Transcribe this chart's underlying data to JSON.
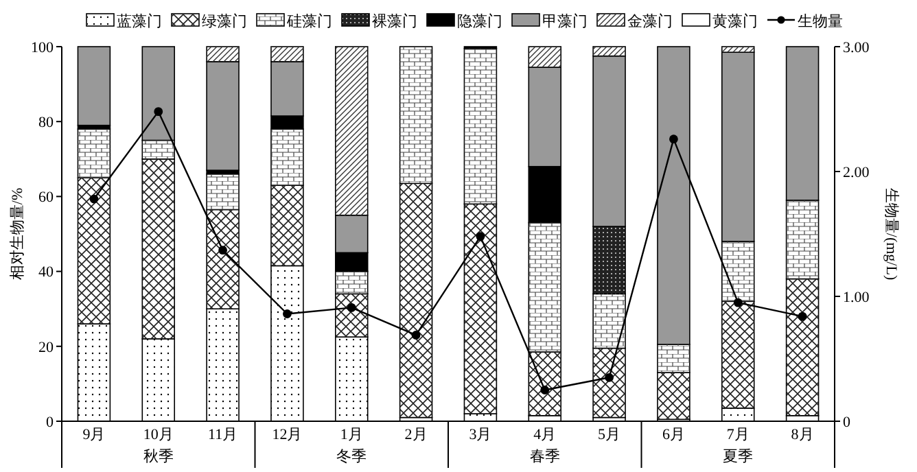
{
  "chart_data": {
    "type": "bar",
    "stacked": true,
    "categories": [
      "9月",
      "10月",
      "11月",
      "12月",
      "1月",
      "2月",
      "3月",
      "4月",
      "5月",
      "6月",
      "7月",
      "8月"
    ],
    "ylabel": "相对生物量/%",
    "y2label": "生物量/(mg/L)",
    "ylim": [
      0,
      100
    ],
    "yticks": [
      0,
      20,
      40,
      60,
      80,
      100
    ],
    "y2lim": [
      0,
      3
    ],
    "y2ticks": [
      0,
      {
        "value": 1,
        "label": "1.00"
      },
      {
        "value": 2,
        "label": "2.00"
      },
      {
        "value": 3,
        "label": "3.00"
      }
    ],
    "legend": "top",
    "marker": "circle",
    "grid": false,
    "annotations": [
      "秋季",
      "冬季",
      "春季",
      "夏季"
    ],
    "series": [
      {
        "name": "蓝藻门",
        "color": "#ffffff",
        "values": [
          26,
          22,
          30,
          41.5,
          22.5,
          1,
          2,
          1.5,
          1,
          0.5,
          3.5,
          1.5
        ]
      },
      {
        "name": "绿藻门",
        "color": "#ffffff",
        "values": [
          39,
          48,
          26.5,
          21.5,
          11.5,
          62.5,
          56,
          17,
          18.5,
          12.5,
          28.5,
          36.5
        ]
      },
      {
        "name": "硅藻门",
        "color": "#ffffff",
        "values": [
          13,
          5,
          9.5,
          15,
          6,
          36.5,
          41.5,
          34.5,
          14.5,
          7.5,
          16,
          21
        ]
      },
      {
        "name": "裸藻门",
        "color": "#222222",
        "values": [
          0,
          0,
          0,
          0,
          0,
          0,
          0,
          0,
          18,
          0,
          0,
          0
        ]
      },
      {
        "name": "隐藻门",
        "color": "#000000",
        "values": [
          1,
          0,
          1,
          3.5,
          5,
          0,
          0.5,
          15,
          0,
          0,
          0,
          0
        ]
      },
      {
        "name": "甲藻门",
        "color": "#999999",
        "values": [
          21,
          25,
          29,
          14.5,
          10,
          0,
          0,
          26.5,
          45.5,
          79.5,
          50.5,
          41
        ]
      },
      {
        "name": "金藻门",
        "color": "#ffffff",
        "values": [
          0,
          0,
          4,
          4,
          45,
          0,
          0,
          5.5,
          2.5,
          0,
          1.5,
          0
        ]
      },
      {
        "name": "黄藻门",
        "color": "#ffffff",
        "values": [
          0,
          0,
          0,
          0,
          0,
          0,
          0,
          0,
          0,
          0,
          0,
          0
        ]
      },
      {
        "name": "生物量",
        "type": "line",
        "axis": "y2",
        "color": "#000000",
        "values": [
          1.78,
          2.48,
          1.37,
          0.86,
          0.91,
          0.69,
          1.48,
          0.25,
          0.35,
          2.26,
          0.95,
          0.84
        ]
      }
    ]
  }
}
